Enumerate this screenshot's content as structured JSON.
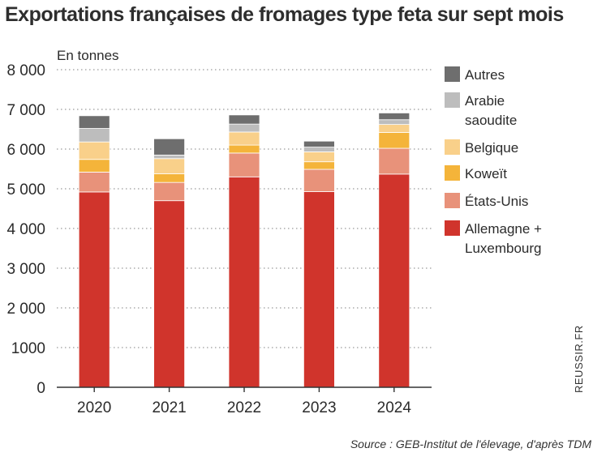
{
  "title": "Exportations françaises de fromages type feta sur sept mois",
  "source": "Source : GEB-Institut de l'élevage, d'après TDM",
  "watermark": "REUSSIR.FR",
  "chart_data": {
    "type": "bar",
    "stacked": true,
    "title": "Exportations françaises de fromages type feta sur sept mois",
    "ylabel": "En tonnes",
    "xlabel": "",
    "ylim": [
      0,
      8000
    ],
    "yticks": [
      0,
      1000,
      2000,
      3000,
      4000,
      5000,
      6000,
      7000,
      8000
    ],
    "ytick_labels": [
      "0",
      "1000",
      "2 000",
      "3 000",
      "4 000",
      "5 000",
      "6 000",
      "7 000",
      "8 000"
    ],
    "grid": "horizontal dotted",
    "legend_position": "right",
    "categories": [
      "2020",
      "2021",
      "2022",
      "2023",
      "2024"
    ],
    "series": [
      {
        "name": "Allemagne + Luxembourg",
        "label_lines": [
          "Allemagne +",
          "Luxembourg"
        ],
        "color": "#d0342c",
        "values": [
          4920,
          4700,
          5300,
          4930,
          5370
        ]
      },
      {
        "name": "États-Unis",
        "label_lines": [
          "États-Unis"
        ],
        "color": "#e8927a",
        "values": [
          500,
          460,
          600,
          560,
          650
        ]
      },
      {
        "name": "Koweït",
        "label_lines": [
          "Koweït"
        ],
        "color": "#f4b43a",
        "values": [
          320,
          220,
          200,
          190,
          400
        ]
      },
      {
        "name": "Belgique",
        "label_lines": [
          "Belgique"
        ],
        "color": "#f9d08a",
        "values": [
          440,
          380,
          330,
          250,
          200
        ]
      },
      {
        "name": "Arabie saoudite",
        "label_lines": [
          "Arabie",
          "saoudite"
        ],
        "color": "#bdbdbd",
        "values": [
          340,
          90,
          200,
          120,
          120
        ]
      },
      {
        "name": "Autres",
        "label_lines": [
          "Autres"
        ],
        "color": "#6e6e6e",
        "values": [
          320,
          410,
          230,
          150,
          170
        ]
      }
    ],
    "legend_order": [
      "Autres",
      "Arabie saoudite",
      "Belgique",
      "Koweït",
      "États-Unis",
      "Allemagne + Luxembourg"
    ]
  }
}
